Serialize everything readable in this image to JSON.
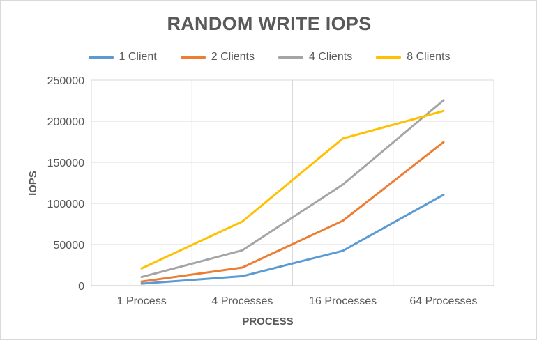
{
  "chart_data": {
    "type": "line",
    "title": "RANDOM WRITE IOPS",
    "xlabel": "PROCESS",
    "ylabel": "IOPS",
    "categories": [
      "1 Process",
      "4 Processes",
      "16 Processes",
      "64 Processes"
    ],
    "ylim": [
      0,
      250000
    ],
    "yticks": [
      "0",
      "50000",
      "100000",
      "150000",
      "200000",
      "250000"
    ],
    "grid": true,
    "legend_position": "top",
    "series": [
      {
        "name": "1 Client",
        "color": "#5b9bd5",
        "values": [
          2500,
          11500,
          42500,
          110500
        ]
      },
      {
        "name": "2 Clients",
        "color": "#ed7d31",
        "values": [
          5000,
          22000,
          79000,
          174500
        ]
      },
      {
        "name": "4 Clients",
        "color": "#a5a5a5",
        "values": [
          10500,
          43000,
          123000,
          225500
        ]
      },
      {
        "name": "8 Clients",
        "color": "#ffc000",
        "values": [
          21000,
          78000,
          179000,
          212500
        ]
      }
    ]
  }
}
